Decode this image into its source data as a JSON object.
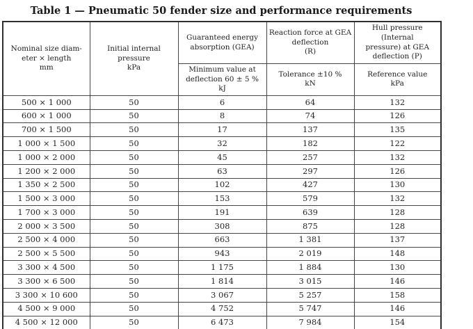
{
  "title": "Table 1 — Pneumatic 50 fender size and performance requirements",
  "table": {
    "header": {
      "nominal_size": "Nominal size diam-\neter × length\nmm",
      "initial_pressure": "Initial internal\npressure\nkPa",
      "gea": "Guaranteed energy\nabsorption (GEA)",
      "reaction_force": "Reaction force at GEA\ndeflection\n(R)",
      "hull_pressure": "Hull pressure (Internal\npressure) at GEA\ndeflection (P)",
      "gea_sub": "Minimum value at\ndeflection 60 ± 5 %\nkJ",
      "reaction_sub": "Tolerance ±10 %\nkN",
      "hull_sub": "Reference value\nkPa"
    },
    "rows": [
      [
        "500 × 1 000",
        "50",
        "6",
        "64",
        "132"
      ],
      [
        "600 × 1 000",
        "50",
        "8",
        "74",
        "126"
      ],
      [
        "700 × 1 500",
        "50",
        "17",
        "137",
        "135"
      ],
      [
        "1 000 × 1 500",
        "50",
        "32",
        "182",
        "122"
      ],
      [
        "1 000 × 2 000",
        "50",
        "45",
        "257",
        "132"
      ],
      [
        "1 200 × 2 000",
        "50",
        "63",
        "297",
        "126"
      ],
      [
        "1 350 × 2 500",
        "50",
        "102",
        "427",
        "130"
      ],
      [
        "1 500 × 3 000",
        "50",
        "153",
        "579",
        "132"
      ],
      [
        "1 700 × 3 000",
        "50",
        "191",
        "639",
        "128"
      ],
      [
        "2 000 × 3 500",
        "50",
        "308",
        "875",
        "128"
      ],
      [
        "2 500 × 4 000",
        "50",
        "663",
        "1 381",
        "137"
      ],
      [
        "2 500 × 5 500",
        "50",
        "943",
        "2 019",
        "148"
      ],
      [
        "3 300 × 4 500",
        "50",
        "1 175",
        "1 884",
        "130"
      ],
      [
        "3 300 × 6 500",
        "50",
        "1 814",
        "3 015",
        "146"
      ],
      [
        "3 300 × 10 600",
        "50",
        "3 067",
        "5 257",
        "158"
      ],
      [
        "4 500 × 9 000",
        "50",
        "4 752",
        "5 747",
        "146"
      ],
      [
        "4 500 × 12 000",
        "50",
        "6 473",
        "7 984",
        "154"
      ]
    ],
    "colors": {
      "outer_border": "#2e2e2e",
      "inner_border": "#454545",
      "text": "#262626",
      "background": "#ffffff"
    }
  }
}
